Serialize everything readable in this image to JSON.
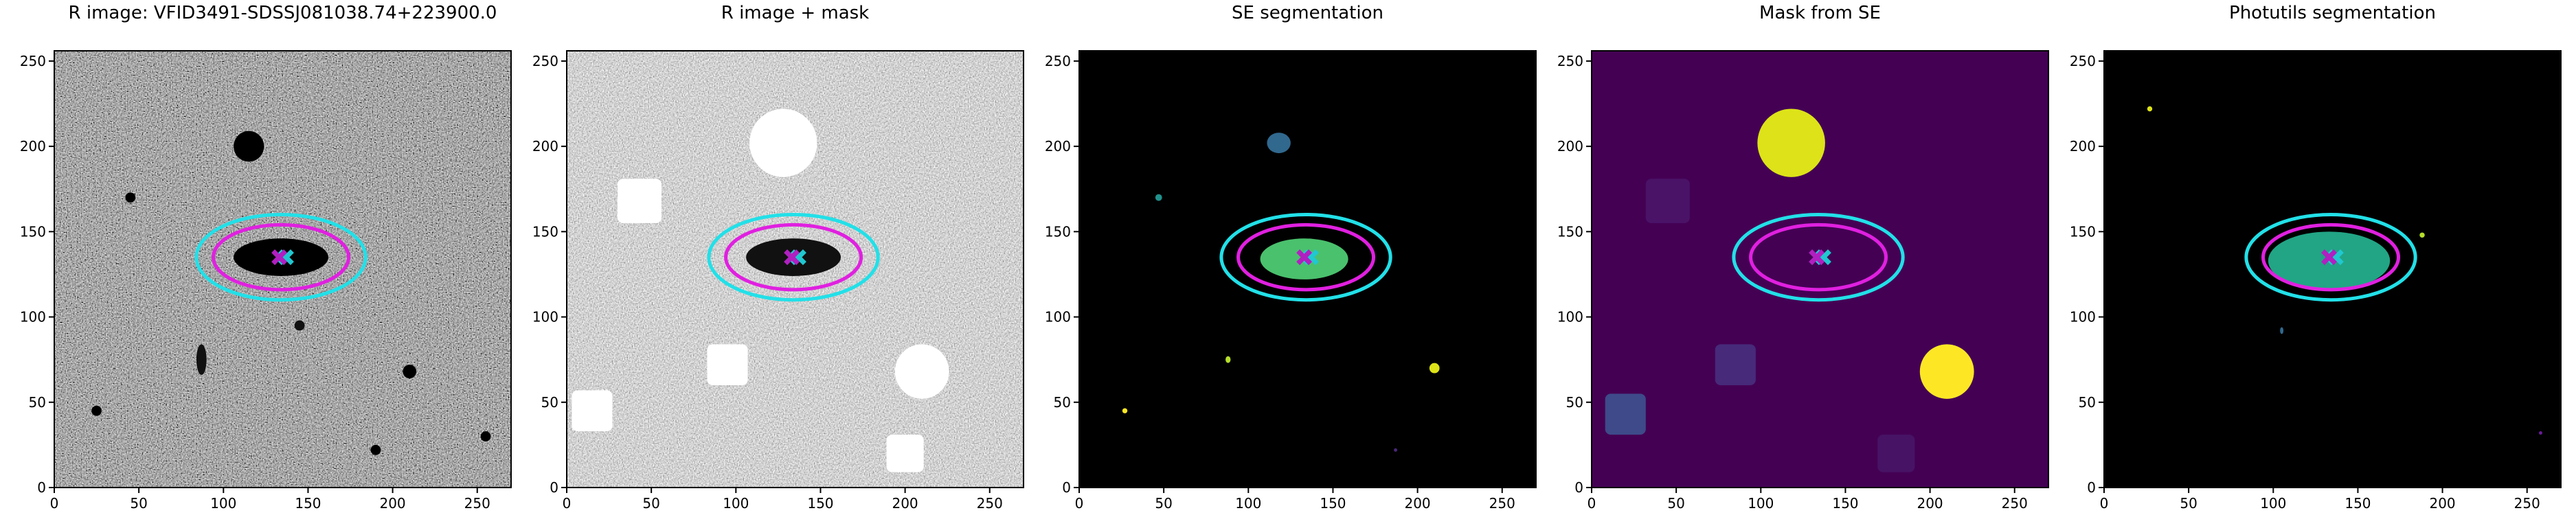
{
  "chart_data": [
    {
      "type": "image",
      "title": "R image: VFID3491-SDSSJ081038.74+223900.0",
      "xlim": [
        0,
        270
      ],
      "ylim": [
        0,
        256
      ],
      "xticks": [
        0,
        50,
        100,
        150,
        200,
        250
      ],
      "yticks": [
        0,
        50,
        100,
        150,
        200,
        250
      ],
      "ellipses": [
        {
          "x": 134,
          "y": 135,
          "width": 100,
          "height": 50,
          "color": "#22e0e8"
        },
        {
          "x": 134,
          "y": 135,
          "width": 80,
          "height": 38,
          "color": "#e020e0"
        }
      ],
      "markers": [
        {
          "x": 137,
          "y": 135,
          "color": "#20c8d0"
        },
        {
          "x": 133,
          "y": 135,
          "color": "#b020c0"
        }
      ]
    },
    {
      "type": "image",
      "title": "R image + mask",
      "xlim": [
        0,
        270
      ],
      "ylim": [
        0,
        256
      ],
      "xticks": [
        0,
        50,
        100,
        150,
        200,
        250
      ],
      "yticks": [
        0,
        50,
        100,
        150,
        200,
        250
      ],
      "ellipses": [
        {
          "x": 134,
          "y": 135,
          "width": 100,
          "height": 50,
          "color": "#22e0e8"
        },
        {
          "x": 134,
          "y": 135,
          "width": 80,
          "height": 38,
          "color": "#e020e0"
        }
      ],
      "markers": [
        {
          "x": 137,
          "y": 135,
          "color": "#20c8d0"
        },
        {
          "x": 133,
          "y": 135,
          "color": "#b020c0"
        }
      ]
    },
    {
      "type": "image",
      "title": "SE segmentation",
      "xlim": [
        0,
        270
      ],
      "ylim": [
        0,
        256
      ],
      "xticks": [
        0,
        50,
        100,
        150,
        200,
        250
      ],
      "yticks": [
        0,
        50,
        100,
        150,
        200,
        250
      ],
      "ellipses": [
        {
          "x": 134,
          "y": 135,
          "width": 100,
          "height": 50,
          "color": "#22e0e8"
        },
        {
          "x": 134,
          "y": 135,
          "width": 80,
          "height": 38,
          "color": "#e020e0"
        }
      ],
      "markers": [
        {
          "x": 137,
          "y": 135,
          "color": "#20c8d0"
        },
        {
          "x": 133,
          "y": 135,
          "color": "#b020c0"
        }
      ]
    },
    {
      "type": "image",
      "title": "Mask from SE",
      "xlim": [
        0,
        270
      ],
      "ylim": [
        0,
        256
      ],
      "xticks": [
        0,
        50,
        100,
        150,
        200,
        250
      ],
      "yticks": [
        0,
        50,
        100,
        150,
        200,
        250
      ],
      "ellipses": [
        {
          "x": 134,
          "y": 135,
          "width": 100,
          "height": 50,
          "color": "#22e0e8"
        },
        {
          "x": 134,
          "y": 135,
          "width": 80,
          "height": 38,
          "color": "#e020e0"
        }
      ],
      "markers": [
        {
          "x": 137,
          "y": 135,
          "color": "#20c8d0"
        },
        {
          "x": 133,
          "y": 135,
          "color": "#b020c0"
        }
      ]
    },
    {
      "type": "image",
      "title": "Photutils segmentation",
      "xlim": [
        0,
        270
      ],
      "ylim": [
        0,
        256
      ],
      "xticks": [
        0,
        50,
        100,
        150,
        200,
        250
      ],
      "yticks": [
        0,
        50,
        100,
        150,
        200,
        250
      ],
      "ellipses": [
        {
          "x": 134,
          "y": 135,
          "width": 100,
          "height": 50,
          "color": "#22e0e8"
        },
        {
          "x": 134,
          "y": 135,
          "width": 80,
          "height": 38,
          "color": "#e020e0"
        }
      ],
      "markers": [
        {
          "x": 137,
          "y": 135,
          "color": "#20c8d0"
        },
        {
          "x": 133,
          "y": 135,
          "color": "#b020c0"
        }
      ]
    }
  ]
}
